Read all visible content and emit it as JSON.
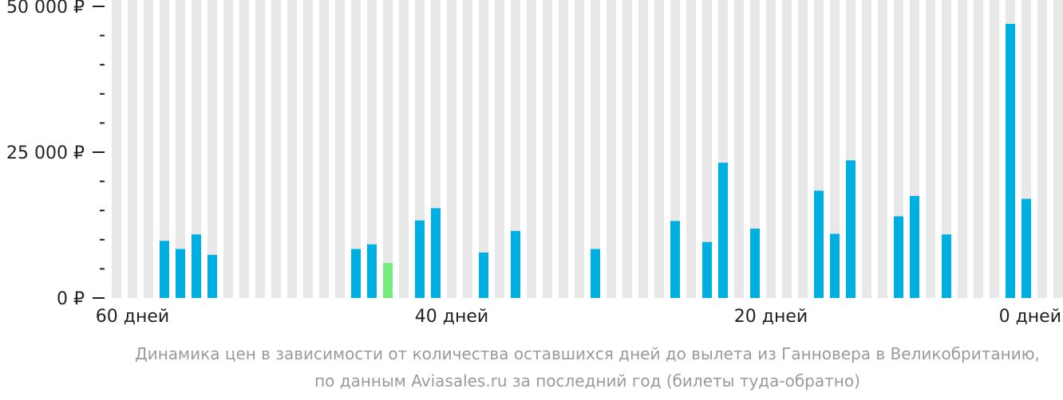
{
  "chart_data": {
    "type": "bar",
    "currency": "₽",
    "y_ticks": [
      {
        "value": 0,
        "label": "0 ₽"
      },
      {
        "value": 25000,
        "label": "25 000 ₽"
      },
      {
        "value": 50000,
        "label": "50 000 ₽"
      }
    ],
    "ylim": [
      0,
      50000
    ],
    "x_ticks": [
      {
        "days": 60,
        "label": "60 дней"
      },
      {
        "days": 40,
        "label": "40 дней"
      },
      {
        "days": 20,
        "label": "20 дней"
      },
      {
        "days": 0,
        "label": "0 дней"
      }
    ],
    "xlim": [
      61,
      0
    ],
    "days": [
      61,
      60,
      59,
      58,
      57,
      56,
      55,
      54,
      53,
      52,
      51,
      50,
      49,
      48,
      47,
      46,
      45,
      44,
      43,
      42,
      41,
      40,
      39,
      38,
      37,
      36,
      35,
      34,
      33,
      32,
      31,
      30,
      29,
      28,
      27,
      26,
      25,
      24,
      23,
      22,
      21,
      20,
      19,
      18,
      17,
      16,
      15,
      14,
      13,
      12,
      11,
      10,
      9,
      8,
      7,
      6,
      5,
      4,
      3,
      2,
      1,
      0
    ],
    "values": [
      null,
      null,
      null,
      9800,
      8400,
      10900,
      7400,
      null,
      null,
      null,
      null,
      null,
      null,
      null,
      null,
      8400,
      9200,
      6000,
      null,
      13300,
      15400,
      null,
      null,
      7800,
      null,
      11500,
      null,
      null,
      null,
      null,
      8400,
      null,
      null,
      null,
      null,
      13200,
      null,
      9600,
      23200,
      null,
      11900,
      null,
      null,
      null,
      18400,
      11000,
      23600,
      null,
      null,
      14000,
      17500,
      null,
      10900,
      null,
      null,
      null,
      47000,
      17000,
      null,
      null,
      null,
      null
    ],
    "min_index": 17,
    "colors": {
      "bar": "#00afe1",
      "min_bar": "#77ea7e",
      "background_column": "#e8e8e8",
      "axis": "#222222",
      "caption": "#9a9a9a"
    }
  },
  "caption": {
    "line1": "Динамика цен в зависимости от количества оставшихся дней до вылета из Ганновера в Великобританию,",
    "line2": "по данным Aviasales.ru за последний год (билеты туда-обратно)"
  }
}
